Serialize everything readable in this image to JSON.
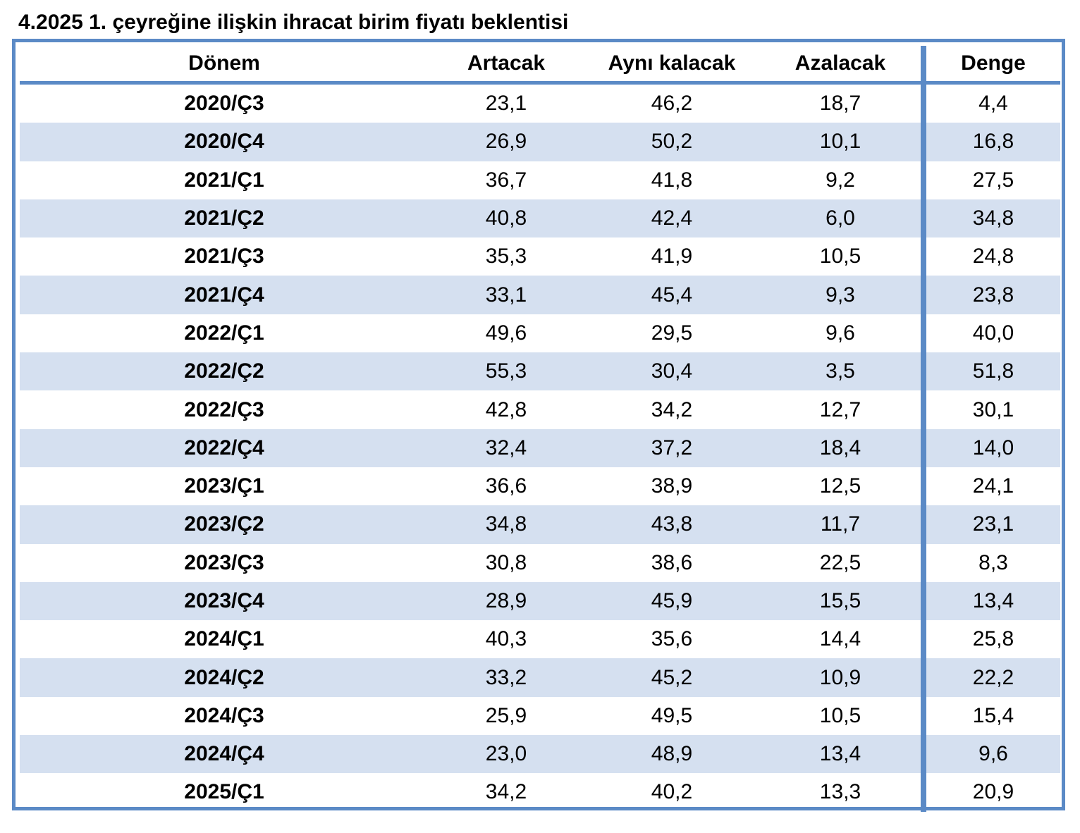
{
  "title": "4.2025 1. çeyreğine ilişkin ihracat birim fiyatı beklentisi",
  "chart_data": {
    "type": "table",
    "columns": [
      "Dönem",
      "Artacak",
      "Aynı kalacak",
      "Azalacak",
      "Denge"
    ],
    "rows": [
      [
        "2020/Ç3",
        "23,1",
        "46,2",
        "18,7",
        "4,4"
      ],
      [
        "2020/Ç4",
        "26,9",
        "50,2",
        "10,1",
        "16,8"
      ],
      [
        "2021/Ç1",
        "36,7",
        "41,8",
        "9,2",
        "27,5"
      ],
      [
        "2021/Ç2",
        "40,8",
        "42,4",
        "6,0",
        "34,8"
      ],
      [
        "2021/Ç3",
        "35,3",
        "41,9",
        "10,5",
        "24,8"
      ],
      [
        "2021/Ç4",
        "33,1",
        "45,4",
        "9,3",
        "23,8"
      ],
      [
        "2022/Ç1",
        "49,6",
        "29,5",
        "9,6",
        "40,0"
      ],
      [
        "2022/Ç2",
        "55,3",
        "30,4",
        "3,5",
        "51,8"
      ],
      [
        "2022/Ç3",
        "42,8",
        "34,2",
        "12,7",
        "30,1"
      ],
      [
        "2022/Ç4",
        "32,4",
        "37,2",
        "18,4",
        "14,0"
      ],
      [
        "2023/Ç1",
        "36,6",
        "38,9",
        "12,5",
        "24,1"
      ],
      [
        "2023/Ç2",
        "34,8",
        "43,8",
        "11,7",
        "23,1"
      ],
      [
        "2023/Ç3",
        "30,8",
        "38,6",
        "22,5",
        "8,3"
      ],
      [
        "2023/Ç4",
        "28,9",
        "45,9",
        "15,5",
        "13,4"
      ],
      [
        "2024/Ç1",
        "40,3",
        "35,6",
        "14,4",
        "25,8"
      ],
      [
        "2024/Ç2",
        "33,2",
        "45,2",
        "10,9",
        "22,2"
      ],
      [
        "2024/Ç3",
        "25,9",
        "49,5",
        "10,5",
        "15,4"
      ],
      [
        "2024/Ç4",
        "23,0",
        "48,9",
        "13,4",
        "9,6"
      ],
      [
        "2025/Ç1",
        "34,2",
        "40,2",
        "13,3",
        "20,9"
      ]
    ]
  },
  "colors": {
    "border": "#5b8ac6",
    "stripe": "#d5e0f0"
  }
}
